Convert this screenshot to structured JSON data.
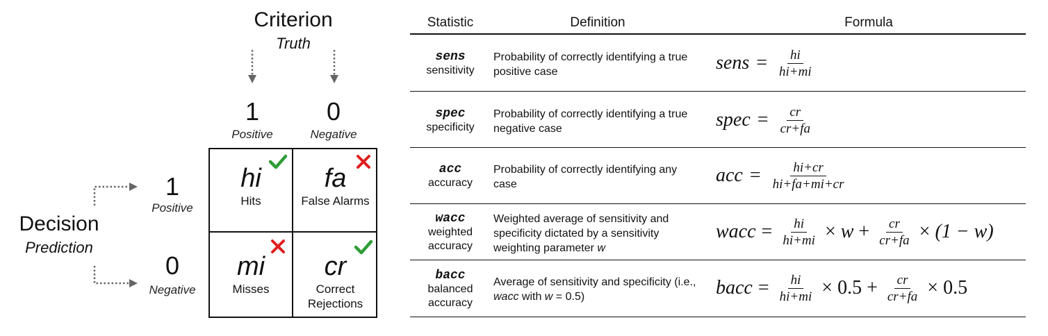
{
  "matrix": {
    "criterion_title": "Criterion",
    "criterion_subtitle": "Truth",
    "decision_title": "Decision",
    "decision_subtitle": "Prediction",
    "columns": [
      {
        "value": "1",
        "label": "Positive"
      },
      {
        "value": "0",
        "label": "Negative"
      }
    ],
    "rows": [
      {
        "value": "1",
        "label": "Positive"
      },
      {
        "value": "0",
        "label": "Negative"
      }
    ],
    "cells": [
      {
        "abbr": "hi",
        "name": "Hits",
        "mark": "check-icon",
        "mark_color": "#2e9d36"
      },
      {
        "abbr": "fa",
        "name": "False Alarms",
        "mark": "cross-icon",
        "mark_color": "#e11d1d"
      },
      {
        "abbr": "mi",
        "name": "Misses",
        "mark": "cross-icon",
        "mark_color": "#e11d1d"
      },
      {
        "abbr": "cr",
        "name": "Correct Rejections",
        "mark": "check-icon",
        "mark_color": "#2e9d36"
      }
    ]
  },
  "table": {
    "headers": {
      "statistic": "Statistic",
      "definition": "Definition",
      "formula": "Formula"
    },
    "rows": [
      {
        "abbr": "sens",
        "full": "sensitivity",
        "definition": "Probability of correctly identifying a true positive case",
        "formula": {
          "lhs": "sens",
          "eq": "=",
          "num1": "hi",
          "den1": "hi+mi"
        }
      },
      {
        "abbr": "spec",
        "full": "specificity",
        "definition": "Probability of correctly identifying a true negative case",
        "formula": {
          "lhs": "spec",
          "eq": "=",
          "num1": "cr",
          "den1": "cr+fa"
        }
      },
      {
        "abbr": "acc",
        "full": "accuracy",
        "definition": "Probability of correctly identifying any case",
        "formula": {
          "lhs": "acc",
          "eq": "=",
          "num1": "hi+cr",
          "den1": "hi+fa+mi+cr"
        }
      },
      {
        "abbr": "wacc",
        "full": "weighted accuracy",
        "definition_pre": "Weighted average of sensitivity and specificity dictated by a sensitivity weighting parameter ",
        "definition_var": "w",
        "formula": {
          "lhs": "wacc",
          "eq": "=",
          "num1": "hi",
          "den1": "hi+mi",
          "op1": "×",
          "w1": "w",
          "op2": "+",
          "num2": "cr",
          "den2": "cr+fa",
          "op3": "×",
          "tail": "(1 − w)"
        }
      },
      {
        "abbr": "bacc",
        "full": "balanced accuracy",
        "definition_pre": "Average of sensitivity and specificity (i.e., ",
        "definition_var": "wacc",
        "definition_mid": " with ",
        "definition_var2": "w",
        "definition_post": " = 0.5)",
        "formula": {
          "lhs": "bacc",
          "eq": "=",
          "num1": "hi",
          "den1": "hi+mi",
          "op1": "×",
          "w1": "0.5",
          "op2": "+",
          "num2": "cr",
          "den2": "cr+fa",
          "op3": "×",
          "tail": "0.5"
        }
      }
    ]
  }
}
